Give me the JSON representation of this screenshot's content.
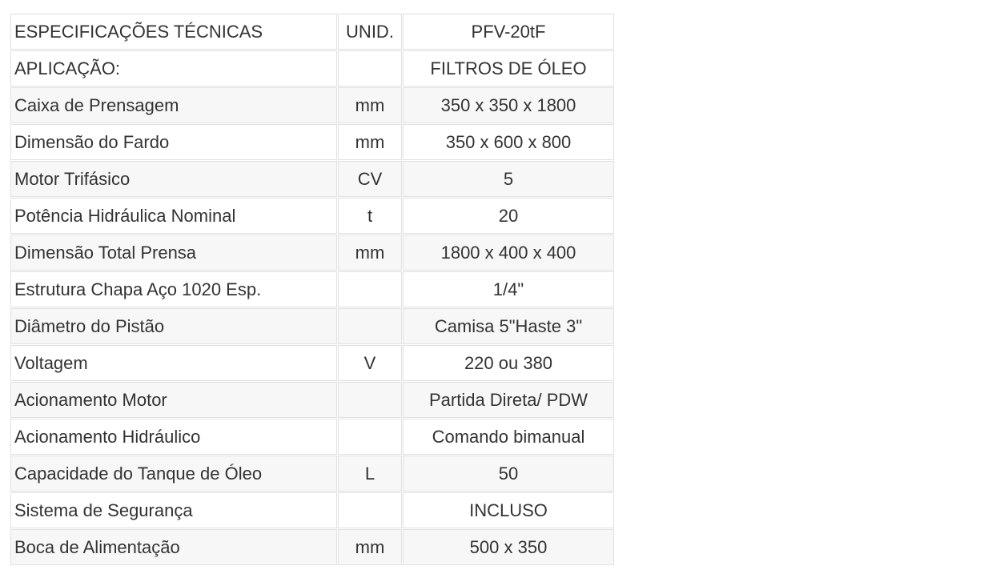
{
  "table": {
    "header": {
      "spec": "ESPECIFICAÇÕES TÉCNICAS",
      "unit": "UNID.",
      "model": "PFV-20tF"
    },
    "rows": [
      {
        "spec": "APLICAÇÃO:",
        "unit": "",
        "value": "FILTROS DE ÓLEO"
      },
      {
        "spec": "Caixa de Prensagem",
        "unit": "mm",
        "value": "350 x 350 x 1800"
      },
      {
        "spec": "Dimensão do Fardo",
        "unit": "mm",
        "value": "350 x 600 x 800"
      },
      {
        "spec": "Motor Trifásico",
        "unit": "CV",
        "value": "5"
      },
      {
        "spec": "Potência Hidráulica Nominal",
        "unit": "t",
        "value": "20"
      },
      {
        "spec": "Dimensão Total Prensa",
        "unit": "mm",
        "value": "1800 x 400 x 400"
      },
      {
        "spec": "Estrutura Chapa Aço 1020 Esp.",
        "unit": "",
        "value": "1/4\""
      },
      {
        "spec": "Diâmetro do Pistão",
        "unit": "",
        "value": "Camisa 5\"Haste 3\""
      },
      {
        "spec": "Voltagem",
        "unit": "V",
        "value": "220 ou 380"
      },
      {
        "spec": "Acionamento Motor",
        "unit": "",
        "value": "Partida Direta/ PDW"
      },
      {
        "spec": "Acionamento Hidráulico",
        "unit": "",
        "value": "Comando bimanual"
      },
      {
        "spec": "Capacidade do Tanque de Óleo",
        "unit": "L",
        "value": "50"
      },
      {
        "spec": "Sistema de Segurança",
        "unit": "",
        "value": "INCLUSO"
      },
      {
        "spec": "Boca de Alimentação",
        "unit": "mm",
        "value": "500 x 350"
      }
    ],
    "colors": {
      "stripe_bg": "#f7f7f7",
      "row_bg": "#ffffff",
      "border": "#e0e0e0",
      "text": "#333333",
      "page_bg": "#ffffff"
    }
  }
}
